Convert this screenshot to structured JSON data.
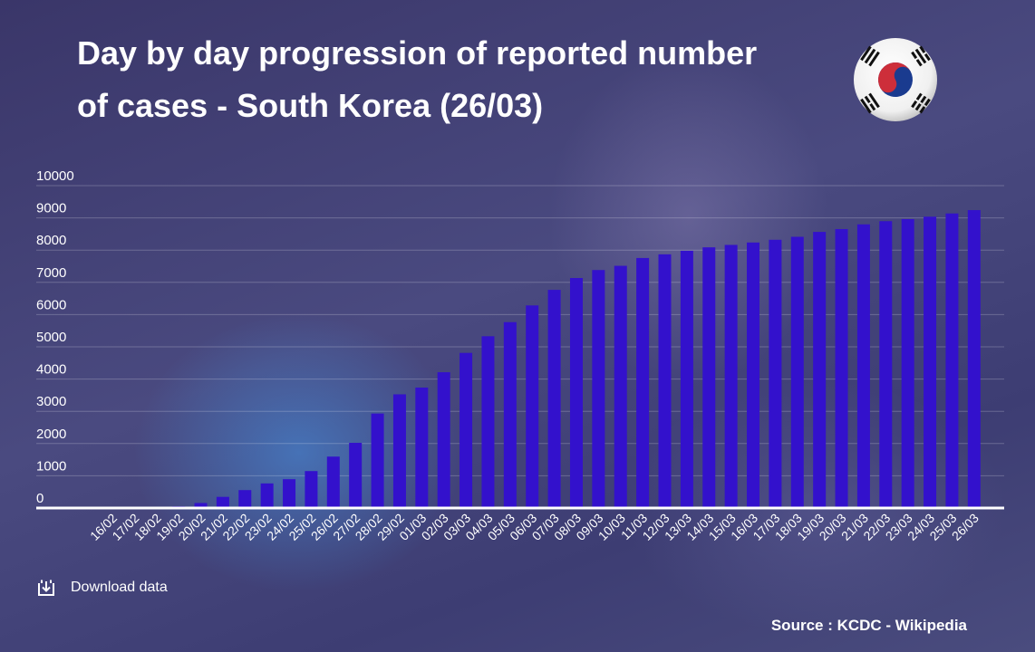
{
  "header": {
    "title": "Day by day progression of reported number of cases - South Korea (26/03)",
    "flag_icon": "south-korea-flag-icon"
  },
  "colors": {
    "bar": "#3311cc",
    "text": "#ffffff",
    "grid": "rgba(255,255,255,0.22)",
    "baseline": "#ffffff"
  },
  "chart_data": {
    "type": "bar",
    "title": "Day by day progression of reported number of cases - South Korea (26/03)",
    "xlabel": "",
    "ylabel": "",
    "ylim": [
      0,
      10000
    ],
    "yticks": [
      0,
      1000,
      2000,
      3000,
      4000,
      5000,
      6000,
      7000,
      8000,
      9000,
      10000
    ],
    "grid": true,
    "categories": [
      "16/02",
      "17/02",
      "18/02",
      "19/02",
      "20/02",
      "21/02",
      "22/02",
      "23/02",
      "24/02",
      "25/02",
      "26/02",
      "27/02",
      "28/02",
      "29/02",
      "01/03",
      "02/03",
      "03/03",
      "04/03",
      "05/03",
      "06/03",
      "07/03",
      "08/03",
      "09/03",
      "10/03",
      "11/03",
      "12/03",
      "13/03",
      "14/03",
      "15/03",
      "16/03",
      "17/03",
      "18/03",
      "19/03",
      "20/03",
      "21/03",
      "22/03",
      "23/03",
      "24/03",
      "25/03",
      "26/03"
    ],
    "values": [
      29,
      30,
      31,
      51,
      156,
      346,
      556,
      763,
      893,
      1146,
      1595,
      2022,
      2931,
      3526,
      3736,
      4212,
      4812,
      5328,
      5766,
      6284,
      6767,
      7134,
      7382,
      7513,
      7755,
      7869,
      7979,
      8086,
      8162,
      8236,
      8320,
      8413,
      8565,
      8652,
      8799,
      8897,
      8961,
      9037,
      9137,
      9241
    ]
  },
  "footer": {
    "download_label": "Download data",
    "download_icon": "download-icon",
    "source": "Source : KCDC - Wikipedia"
  }
}
